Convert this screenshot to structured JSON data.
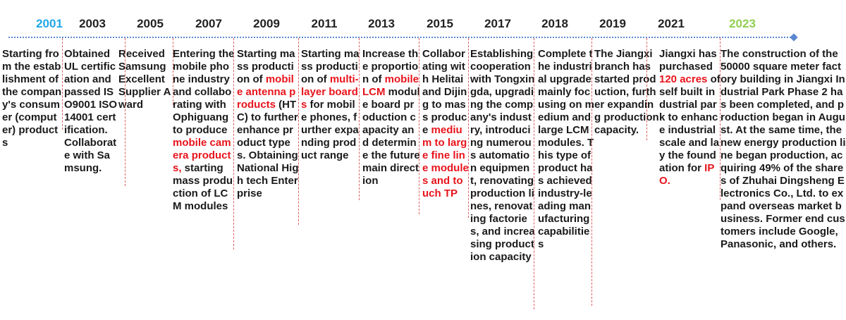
{
  "timeline": {
    "entries": [
      {
        "year": "2001",
        "segments": [
          {
            "text": "Starting from the establishment of the company's consumer (computer) products"
          }
        ]
      },
      {
        "year": "2003",
        "segments": [
          {
            "text": "Obtained UL certification and passed ISO9001 ISO14001 certification. Collaborate with Samsung."
          }
        ]
      },
      {
        "year": "2005",
        "segments": [
          {
            "text": "Received Samsung Excellent Supplier Award"
          }
        ]
      },
      {
        "year": "2007",
        "segments": [
          {
            "text": "Entering the mobile phone industry and collaborating with Ophiguang to produce "
          },
          {
            "text": "mobile camera products,",
            "hl": true
          },
          {
            "text": " starting mass production of LCM modules"
          }
        ]
      },
      {
        "year": "2009",
        "segments": [
          {
            "text": "Starting mass production of "
          },
          {
            "text": "mobile antenna products",
            "hl": true
          },
          {
            "text": " (HTC) to further enhance product types. Obtaining National High tech Enterprise"
          }
        ]
      },
      {
        "year": "2011",
        "segments": [
          {
            "text": "Starting mass production of "
          },
          {
            "text": "multi-layer boards",
            "hl": true
          },
          {
            "text": " for mobile phones, further expanding product range"
          }
        ]
      },
      {
        "year": "2013",
        "segments": [
          {
            "text": "Increase the proportion of "
          },
          {
            "text": "mobile LCM",
            "hl": true
          },
          {
            "text": " module board production capacity and determine the future main direction"
          }
        ]
      },
      {
        "year": "2015",
        "segments": [
          {
            "text": "Collaborating with Helitai and Dijing to mass produce "
          },
          {
            "text": "medium to large fine line modules and touch TP",
            "hl": true
          }
        ]
      },
      {
        "year": "2017",
        "segments": [
          {
            "text": "Establishing cooperation with Tongxingda, upgrading the company's industry, introducing numerous automation equipment, renovating production lines, renovating factories, and increasing production capacity"
          }
        ]
      },
      {
        "year": "2018",
        "segments": [
          {
            "text": "Complete the industrial upgrade mainly focusing on medium and large LCM modules. This type of product has achieved industry-leading manufacturing capabilities"
          }
        ]
      },
      {
        "year": "2019",
        "segments": [
          {
            "text": "The Jiangxi branch has started production, further expanding production capacity."
          }
        ]
      },
      {
        "year": "2021",
        "segments": [
          {
            "text": "Jiangxi has purchased "
          },
          {
            "text": "120 acres",
            "hl": true
          },
          {
            "text": " of self built industrial park to enhance industrial scale and lay the foundation for "
          },
          {
            "text": "IPO.",
            "hl": true
          }
        ]
      },
      {
        "year": "2023",
        "segments": [
          {
            "text": "The construction of the 50000 square meter factory building in Jiangxi Industrial Park Phase 2 has been completed, and production began in August. At the same time, the new energy production line began production, acquiring 49% of the shares of Zhuhai Dingsheng Electronics Co., Ltd. to expand overseas market business. Former end customers include Google, Panasonic, and others."
          }
        ]
      }
    ],
    "colors": {
      "first_year": "#21a6e8",
      "last_year": "#92cf50",
      "highlight": "#e8141c",
      "axis": "#5a88d0",
      "separator": "#e06060"
    }
  }
}
